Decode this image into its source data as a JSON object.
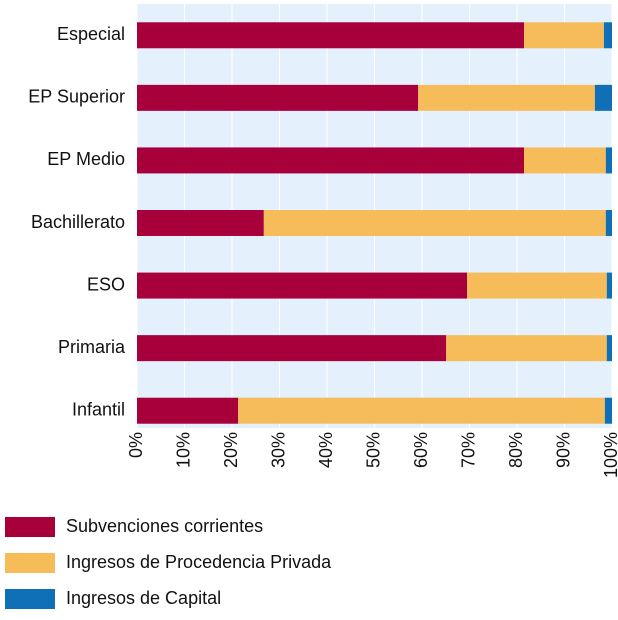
{
  "chart_data": {
    "type": "stacked-barh",
    "categories": [
      "Especial",
      "EP Superior",
      "EP Medio",
      "Bachillerato",
      "ESO",
      "Primaria",
      "Infantil"
    ],
    "series": [
      {
        "name": "Subvenciones corrientes",
        "color": "#a8003a",
        "values": [
          81.5,
          59.2,
          81.5,
          26.7,
          69.5,
          65.1,
          21.3
        ]
      },
      {
        "name": "Ingresos de Procedencia Privada",
        "color": "#f7bc5a",
        "values": [
          16.8,
          37.2,
          17.2,
          72.0,
          29.4,
          33.8,
          77.2
        ]
      },
      {
        "name": "Ingresos de Capital",
        "color": "#0f70b7",
        "values": [
          1.7,
          3.6,
          1.3,
          1.3,
          1.1,
          1.1,
          1.5
        ]
      }
    ],
    "xlim": [
      0,
      100
    ],
    "xticks": [
      {
        "value": 0,
        "label": "0%"
      },
      {
        "value": 10,
        "label": "10%"
      },
      {
        "value": 20,
        "label": "20%"
      },
      {
        "value": 30,
        "label": "30%"
      },
      {
        "value": 40,
        "label": "40%"
      },
      {
        "value": 50,
        "label": "50%"
      },
      {
        "value": 60,
        "label": "60%"
      },
      {
        "value": 70,
        "label": "70%"
      },
      {
        "value": 80,
        "label": "80%"
      },
      {
        "value": 90,
        "label": "90%"
      },
      {
        "value": 100,
        "label": "100%"
      }
    ],
    "grid": true,
    "legend": "bottom"
  }
}
